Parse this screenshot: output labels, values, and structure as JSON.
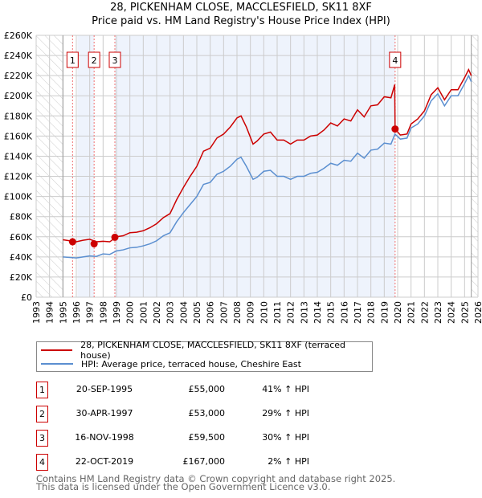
{
  "chart_data": {
    "type": "line",
    "title": "28, PICKENHAM CLOSE, MACCLESFIELD, SK11 8XF",
    "subtitle": "Price paid vs. HM Land Registry's House Price Index (HPI)",
    "xlim": [
      1993,
      2026
    ],
    "ylim": [
      0,
      260000
    ],
    "y_ticks": [
      {
        "v": 0,
        "label": "£0"
      },
      {
        "v": 20,
        "label": "£20K"
      },
      {
        "v": 40,
        "label": "£40K"
      },
      {
        "v": 60,
        "label": "£60K"
      },
      {
        "v": 80,
        "label": "£80K"
      },
      {
        "v": 100,
        "label": "£100K"
      },
      {
        "v": 120,
        "label": "£120K"
      },
      {
        "v": 140,
        "label": "£140K"
      },
      {
        "v": 160,
        "label": "£160K"
      },
      {
        "v": 180,
        "label": "£180K"
      },
      {
        "v": 200,
        "label": "£200K"
      },
      {
        "v": 220,
        "label": "£220K"
      },
      {
        "v": 240,
        "label": "£240K"
      },
      {
        "v": 260,
        "label": "£260K"
      }
    ],
    "x_ticks": [
      "1993",
      "1994",
      "1995",
      "1996",
      "1997",
      "1998",
      "1999",
      "2000",
      "2001",
      "2002",
      "2003",
      "2004",
      "2005",
      "2006",
      "2007",
      "2008",
      "2009",
      "2010",
      "2011",
      "2012",
      "2013",
      "2014",
      "2015",
      "2016",
      "2017",
      "2018",
      "2019",
      "2020",
      "2021",
      "2022",
      "2023",
      "2024",
      "2025",
      "2026"
    ],
    "units_note": "y values in £K",
    "grid": true,
    "legend_placement": "below",
    "series": [
      {
        "name": "28, PICKENHAM CLOSE, MACCLESFIELD, SK11 8XF (terraced house)",
        "color": "#cc0000",
        "points": [
          [
            1995.0,
            57
          ],
          [
            1995.5,
            56
          ],
          [
            1996,
            55
          ],
          [
            1996.5,
            56.5
          ],
          [
            1997,
            57.5
          ],
          [
            1997.5,
            55
          ],
          [
            1998,
            55.5
          ],
          [
            1998.5,
            55
          ],
          [
            1999,
            60
          ],
          [
            1999.5,
            61
          ],
          [
            2000,
            64
          ],
          [
            2000.5,
            64.5
          ],
          [
            2001,
            66
          ],
          [
            2001.5,
            69
          ],
          [
            2002,
            73
          ],
          [
            2002.5,
            79
          ],
          [
            2003,
            83
          ],
          [
            2003.5,
            97
          ],
          [
            2004,
            109
          ],
          [
            2004.5,
            120
          ],
          [
            2005,
            130
          ],
          [
            2005.5,
            145
          ],
          [
            2006,
            148
          ],
          [
            2006.5,
            158
          ],
          [
            2007,
            162
          ],
          [
            2007.5,
            169
          ],
          [
            2008,
            178
          ],
          [
            2008.3,
            180
          ],
          [
            2008.7,
            169
          ],
          [
            2009.2,
            152
          ],
          [
            2009.5,
            155
          ],
          [
            2010,
            162
          ],
          [
            2010.5,
            164
          ],
          [
            2011,
            156
          ],
          [
            2011.5,
            156
          ],
          [
            2012,
            152
          ],
          [
            2012.5,
            156
          ],
          [
            2013,
            156
          ],
          [
            2013.5,
            160
          ],
          [
            2014,
            161
          ],
          [
            2014.5,
            166
          ],
          [
            2015,
            173
          ],
          [
            2015.5,
            170
          ],
          [
            2016,
            177
          ],
          [
            2016.5,
            175
          ],
          [
            2017,
            186
          ],
          [
            2017.5,
            179
          ],
          [
            2018,
            190
          ],
          [
            2018.5,
            191
          ],
          [
            2019,
            199
          ],
          [
            2019.5,
            198
          ],
          [
            2019.78,
            211
          ],
          [
            2019.81,
            167
          ],
          [
            2020.2,
            161
          ],
          [
            2020.7,
            162
          ],
          [
            2021,
            172
          ],
          [
            2021.5,
            177
          ],
          [
            2022,
            185
          ],
          [
            2022.5,
            201
          ],
          [
            2023,
            208
          ],
          [
            2023.5,
            196
          ],
          [
            2024,
            206
          ],
          [
            2024.5,
            206
          ],
          [
            2025,
            218
          ],
          [
            2025.3,
            226
          ],
          [
            2025.5,
            220
          ]
        ]
      },
      {
        "name": "HPI: Average price, terraced house, Cheshire East",
        "color": "#5b8fd0",
        "points": [
          [
            1995.0,
            40
          ],
          [
            1995.5,
            39.5
          ],
          [
            1996,
            39
          ],
          [
            1996.5,
            40
          ],
          [
            1997,
            41
          ],
          [
            1997.5,
            40.5
          ],
          [
            1998,
            43
          ],
          [
            1998.5,
            42.5
          ],
          [
            1999,
            46
          ],
          [
            1999.5,
            47
          ],
          [
            2000,
            49
          ],
          [
            2000.5,
            49.5
          ],
          [
            2001,
            51
          ],
          [
            2001.5,
            53
          ],
          [
            2002,
            56
          ],
          [
            2002.5,
            61
          ],
          [
            2003,
            64
          ],
          [
            2003.5,
            75
          ],
          [
            2004,
            84
          ],
          [
            2004.5,
            92
          ],
          [
            2005,
            100
          ],
          [
            2005.5,
            112
          ],
          [
            2006,
            114
          ],
          [
            2006.5,
            122
          ],
          [
            2007,
            125
          ],
          [
            2007.5,
            130
          ],
          [
            2008,
            137
          ],
          [
            2008.3,
            139
          ],
          [
            2008.7,
            130
          ],
          [
            2009.2,
            117
          ],
          [
            2009.5,
            119
          ],
          [
            2010,
            125
          ],
          [
            2010.5,
            126
          ],
          [
            2011,
            120
          ],
          [
            2011.5,
            120
          ],
          [
            2012,
            117
          ],
          [
            2012.5,
            120
          ],
          [
            2013,
            120
          ],
          [
            2013.5,
            123
          ],
          [
            2014,
            124
          ],
          [
            2014.5,
            128
          ],
          [
            2015,
            133
          ],
          [
            2015.5,
            131
          ],
          [
            2016,
            136
          ],
          [
            2016.5,
            135
          ],
          [
            2017,
            143
          ],
          [
            2017.5,
            138
          ],
          [
            2018,
            146
          ],
          [
            2018.5,
            147
          ],
          [
            2019,
            153
          ],
          [
            2019.5,
            152
          ],
          [
            2019.8,
            162
          ],
          [
            2020.2,
            157
          ],
          [
            2020.7,
            158
          ],
          [
            2021,
            168
          ],
          [
            2021.5,
            172
          ],
          [
            2022,
            180
          ],
          [
            2022.5,
            195
          ],
          [
            2023,
            202
          ],
          [
            2023.5,
            190
          ],
          [
            2024,
            200
          ],
          [
            2024.5,
            200
          ],
          [
            2025,
            212
          ],
          [
            2025.3,
            220
          ],
          [
            2025.5,
            214
          ]
        ]
      }
    ],
    "sales": [
      {
        "label": "1",
        "x": 1995.72,
        "y": 55
      },
      {
        "label": "2",
        "x": 1997.33,
        "y": 53
      },
      {
        "label": "3",
        "x": 1998.88,
        "y": 59.5
      },
      {
        "label": "4",
        "x": 2019.81,
        "y": 167
      }
    ]
  },
  "header": {
    "title": "28, PICKENHAM CLOSE, MACCLESFIELD, SK11 8XF",
    "subtitle": "Price paid vs. HM Land Registry's House Price Index (HPI)"
  },
  "legend": {
    "property": "28, PICKENHAM CLOSE, MACCLESFIELD, SK11 8XF (terraced house)",
    "hpi": "HPI: Average price, terraced house, Cheshire East"
  },
  "table": [
    {
      "num": "1",
      "date": "20-SEP-1995",
      "price": "£55,000",
      "hpi": "41% ↑ HPI"
    },
    {
      "num": "2",
      "date": "30-APR-1997",
      "price": "£53,000",
      "hpi": "29% ↑ HPI"
    },
    {
      "num": "3",
      "date": "16-NOV-1998",
      "price": "£59,500",
      "hpi": "30% ↑ HPI"
    },
    {
      "num": "4",
      "date": "22-OCT-2019",
      "price": "£167,000",
      "hpi": "2% ↑ HPI"
    }
  ],
  "footer": {
    "line1": "Contains HM Land Registry data © Crown copyright and database right 2025.",
    "line2": "This data is licensed under the Open Government Licence v3.0."
  }
}
